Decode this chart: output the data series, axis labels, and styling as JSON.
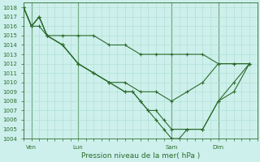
{
  "title": "Pression niveau de la mer( hPa )",
  "background_color": "#cdf0ec",
  "grid_color_major": "#aaddcc",
  "grid_color_minor": "#c5eae5",
  "line_color": "#2d6b2d",
  "ylim": [
    1004,
    1018.5
  ],
  "ytick_min": 1004,
  "ytick_max": 1018,
  "xlim": [
    0,
    30
  ],
  "xtick_positions": [
    1,
    7,
    19,
    25
  ],
  "xtick_labels": [
    "Ven",
    "Lun",
    "Sam",
    "Dim"
  ],
  "series": [
    {
      "x": [
        0,
        1,
        2,
        3,
        5,
        7,
        9,
        11,
        13,
        15,
        17,
        19,
        21,
        23,
        25,
        27,
        29
      ],
      "y": [
        1018,
        1016,
        1016,
        1015,
        1015,
        1015,
        1015,
        1014,
        1014,
        1013,
        1013,
        1013,
        1013,
        1013,
        1012,
        1012,
        1012
      ]
    },
    {
      "x": [
        0,
        1,
        2,
        3,
        5,
        7,
        9,
        11,
        13,
        15,
        17,
        19,
        21,
        23,
        25,
        27,
        29
      ],
      "y": [
        1018,
        1016,
        1017,
        1015,
        1014,
        1012,
        1011,
        1010,
        1010,
        1009,
        1009,
        1008,
        1009,
        1010,
        1012,
        1012,
        1012
      ]
    },
    {
      "x": [
        0,
        1,
        2,
        3,
        5,
        7,
        9,
        11,
        13,
        14,
        15,
        16,
        17,
        18,
        19,
        21,
        23,
        25,
        27,
        29
      ],
      "y": [
        1018,
        1016,
        1017,
        1015,
        1014,
        1012,
        1011,
        1010,
        1009,
        1009,
        1008,
        1007,
        1007,
        1006,
        1005,
        1005,
        1005,
        1008,
        1009,
        1012
      ]
    },
    {
      "x": [
        0,
        1,
        2,
        3,
        5,
        7,
        9,
        11,
        13,
        14,
        15,
        16,
        17,
        18,
        19,
        20,
        21,
        23,
        25,
        27,
        29
      ],
      "y": [
        1018,
        1016,
        1017,
        1015,
        1014,
        1012,
        1011,
        1010,
        1009,
        1009,
        1008,
        1007,
        1006,
        1005,
        1004,
        1004,
        1005,
        1005,
        1008,
        1010,
        1012
      ]
    }
  ]
}
